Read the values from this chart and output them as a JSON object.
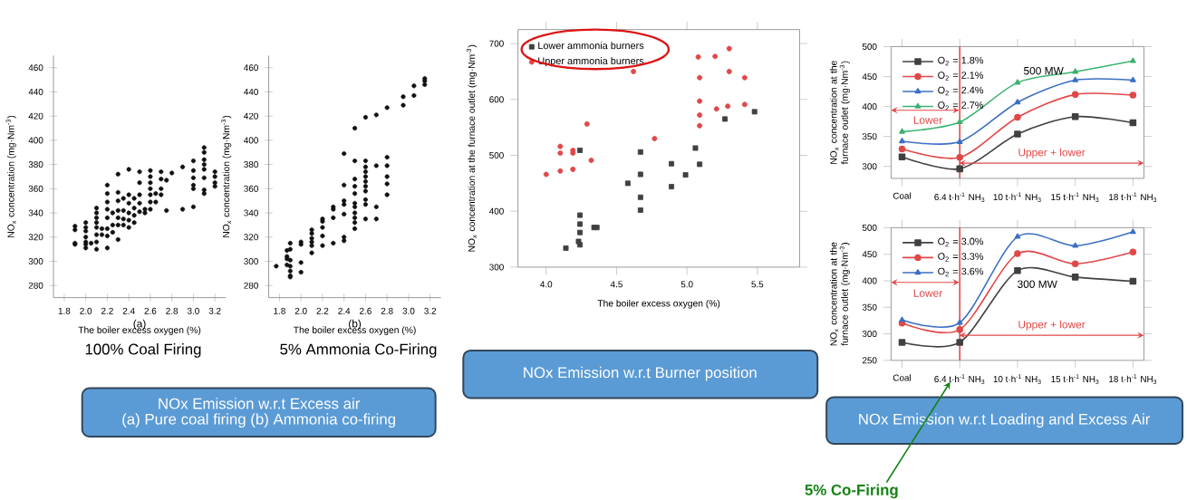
{
  "chart_data": [
    {
      "type": "scatter",
      "xlabel": "The boiler excess oxygen (%)",
      "ylabel": "NO$_{x}$ concentration (mg·Nm$^{-3}$)",
      "color": "#111111",
      "marker": "circle",
      "x": [
        1.9,
        1.9,
        1.9,
        1.9,
        2.0,
        2.0,
        2.0,
        2.0,
        2.0,
        2.0,
        2.0,
        2.05,
        2.1,
        2.1,
        2.1,
        2.1,
        2.1,
        2.1,
        2.1,
        2.1,
        2.15,
        2.15,
        2.2,
        2.2,
        2.2,
        2.2,
        2.2,
        2.2,
        2.2,
        2.2,
        2.25,
        2.25,
        2.25,
        2.3,
        2.3,
        2.3,
        2.3,
        2.3,
        2.3,
        2.3,
        2.35,
        2.35,
        2.35,
        2.35,
        2.4,
        2.4,
        2.4,
        2.4,
        2.4,
        2.4,
        2.45,
        2.45,
        2.45,
        2.45,
        2.5,
        2.5,
        2.5,
        2.5,
        2.5,
        2.55,
        2.55,
        2.6,
        2.6,
        2.6,
        2.6,
        2.6,
        2.6,
        2.6,
        2.65,
        2.65,
        2.7,
        2.7,
        2.7,
        2.7,
        2.75,
        2.75,
        2.8,
        2.9,
        2.9,
        3.0,
        3.0,
        3.0,
        3.0,
        3.0,
        3.0,
        3.1,
        3.1,
        3.1,
        3.1,
        3.1,
        3.1,
        3.1,
        3.1,
        3.2,
        3.2,
        3.2,
        3.2
      ],
      "values": [
        329,
        326,
        315,
        314,
        332,
        328,
        325,
        320,
        316,
        314,
        311,
        315,
        344,
        340,
        336,
        332,
        328,
        322,
        316,
        310,
        327,
        322,
        363,
        356,
        349,
        343,
        336,
        327,
        321,
        311,
        340,
        330,
        324,
        372,
        357,
        350,
        342,
        336,
        330,
        318,
        352,
        342,
        335,
        330,
        376,
        355,
        348,
        340,
        334,
        328,
        352,
        344,
        338,
        332,
        374,
        365,
        355,
        348,
        341,
        343,
        340,
        375,
        370,
        365,
        360,
        355,
        349,
        343,
        356,
        349,
        374,
        368,
        360,
        355,
        367,
        342,
        373,
        378,
        343,
        383,
        375,
        369,
        363,
        360,
        345,
        394,
        390,
        384,
        380,
        376,
        369,
        359,
        356,
        374,
        370,
        365,
        362
      ],
      "xlim": [
        1.7,
        3.3
      ],
      "xticks": [
        1.8,
        {
          "value": 2.0,
          "label": "2.0"
        },
        2.2,
        2.4,
        2.6,
        2.8,
        {
          "value": 3.0,
          "label": "3.0"
        },
        3.2
      ],
      "ylim": [
        270,
        470
      ],
      "yticks": [
        280,
        300,
        320,
        340,
        360,
        380,
        400,
        420,
        440,
        460
      ],
      "annotations": [
        "(a)",
        "100% Coal Firing"
      ]
    },
    {
      "type": "scatter",
      "xlabel": "The boiler excess oxygen (%)",
      "ylabel": "NO$_{x}$ concentration (mg·Nm$^{-3}$)",
      "color": "#111111",
      "marker": "circle",
      "x": [
        1.77,
        1.87,
        1.87,
        1.87,
        1.87,
        1.9,
        1.9,
        1.9,
        1.9,
        1.9,
        1.9,
        1.9,
        2.0,
        2.0,
        2.0,
        2.0,
        2.1,
        2.1,
        2.1,
        2.1,
        2.1,
        2.1,
        2.2,
        2.2,
        2.2,
        2.2,
        2.2,
        2.3,
        2.3,
        2.3,
        2.3,
        2.4,
        2.4,
        2.4,
        2.4,
        2.4,
        2.4,
        2.4,
        2.5,
        2.5,
        2.5,
        2.5,
        2.5,
        2.5,
        2.5,
        2.5,
        2.5,
        2.5,
        2.5,
        2.6,
        2.6,
        2.6,
        2.6,
        2.6,
        2.6,
        2.6,
        2.6,
        2.6,
        2.6,
        2.6,
        2.7,
        2.7,
        2.7,
        2.7,
        2.8,
        2.8,
        2.8,
        2.8,
        2.8,
        2.8,
        2.95,
        2.95,
        3.05,
        3.05,
        3.15,
        3.15,
        3.15
      ],
      "values": [
        296,
        309,
        304,
        302,
        297,
        315,
        310,
        301,
        296,
        292,
        288,
        287,
        316,
        314,
        299,
        291,
        326,
        323,
        319,
        316,
        313,
        307,
        335,
        333,
        328,
        321,
        313,
        345,
        343,
        336,
        315,
        389,
        363,
        350,
        347,
        339,
        320,
        317,
        410,
        383,
        368,
        362,
        356,
        348,
        345,
        340,
        336,
        332,
        327,
        419,
        383,
        378,
        374,
        370,
        366,
        362,
        358,
        351,
        347,
        335,
        421,
        379,
        345,
        335,
        427,
        386,
        379,
        370,
        364,
        355,
        436,
        429,
        445,
        437,
        451,
        449,
        446
      ],
      "xlim": [
        1.7,
        3.3
      ],
      "xticks": [
        1.8,
        {
          "value": 2.0,
          "label": "2.0"
        },
        2.2,
        2.4,
        2.6,
        2.8,
        {
          "value": 3.0,
          "label": "3.0"
        },
        3.2
      ],
      "ylim": [
        270,
        470
      ],
      "yticks": [
        280,
        300,
        320,
        340,
        360,
        380,
        400,
        420,
        440,
        460
      ],
      "annotations": [
        "(b)",
        "5% Ammonia Co-Firing",
        "NOx Emission w.r.t Excess air",
        "(a) Pure coal firing (b) Ammonia co-firing"
      ]
    },
    {
      "type": "scatter",
      "xlabel": "The boiler excess oxygen (%)",
      "ylabel": "NO$_{x}$ concentration at the furnace outlet (mg·Nm$^{-3}$)",
      "legend": "top left",
      "series": [
        {
          "name": "Lower ammonia burners",
          "color": "#404040",
          "marker": "square",
          "x": [
            4.14,
            4.23,
            4.24,
            4.24,
            4.24,
            4.24,
            4.24,
            4.34,
            4.36,
            4.58,
            4.67,
            4.67,
            4.67,
            4.67,
            4.89,
            4.89,
            4.99,
            5.06,
            5.09,
            5.27,
            5.48
          ],
          "values": [
            334,
            346,
            340,
            362,
            377,
            393,
            509,
            371,
            371,
            450,
            506,
            466,
            425,
            402,
            485,
            444,
            465,
            513,
            484,
            565,
            578
          ]
        },
        {
          "name": "Upper ammonia burners",
          "color": "#e04848",
          "marker": "circle",
          "x": [
            4.0,
            4.1,
            4.1,
            4.1,
            4.19,
            4.19,
            4.19,
            4.29,
            4.32,
            4.62,
            4.77,
            5.08,
            5.09,
            5.09,
            5.09,
            5.09,
            5.2,
            5.21,
            5.3,
            5.3,
            5.29,
            5.41,
            5.41
          ],
          "values": [
            466,
            516,
            504,
            472,
            509,
            504,
            475,
            556,
            491,
            650,
            530,
            676,
            639,
            597,
            572,
            553,
            677,
            583,
            691,
            650,
            588,
            639,
            591
          ]
        }
      ],
      "xlim": [
        3.8,
        5.8
      ],
      "xticks": [
        {
          "value": 4.0,
          "label": "4.0"
        },
        4.5,
        {
          "value": 5.0,
          "label": "5.0"
        },
        5.5
      ],
      "ylim": [
        300,
        725
      ],
      "yticks": [
        300,
        400,
        500,
        600,
        700
      ],
      "annotations": [
        "NOx Emission w.r.t Burner position"
      ]
    },
    {
      "type": "line",
      "ylabel": "NO$_{x}$ concentration at the furnace outlet (mg·Nm$^{-3}$)",
      "legend": "top left",
      "line_style": "solid",
      "categories": [
        "Coal",
        "6.4 t·h$^{-1}$ NH$_{3}$",
        "10 t·h$^{-1}$ NH$_{3}$",
        "15 t·h$^{-1}$ NH$_{3}$",
        "18 t·h$^{-1}$ NH$_{3}$"
      ],
      "series": [
        {
          "name": "O$_{2}$ = 1.8%",
          "color": "#404040",
          "marker": "square",
          "values": [
            316,
            296,
            354,
            383,
            373
          ]
        },
        {
          "name": "O$_{2}$ = 2.1%",
          "color": "#e04848",
          "marker": "circle",
          "values": [
            329,
            315,
            382,
            420,
            419
          ]
        },
        {
          "name": "O$_{2}$ = 2.4%",
          "color": "#3b6fc4",
          "marker": "triangle",
          "values": [
            342,
            341,
            407,
            444,
            444
          ]
        },
        {
          "name": "O$_{2}$ = 2.7%",
          "color": "#3cb371",
          "marker": "triangle",
          "values": [
            358,
            374,
            440,
            458,
            476
          ]
        }
      ],
      "ylim": [
        280,
        500
      ],
      "yticks": [
        300,
        350,
        400,
        450,
        500
      ],
      "ref_lines": [
        {
          "axis": "x",
          "value": "6.4 t·h$^{-1}$ NH$_{3}$",
          "color": "#e04848"
        }
      ],
      "annotations": [
        "Lower",
        "Upper + lower",
        "500 MW"
      ]
    },
    {
      "type": "line",
      "ylabel": "NO$_{x}$ concentration at the furnace outlet (mg·Nm$^{-3}$)",
      "legend": "top left",
      "line_style": "solid",
      "categories": [
        "Coal",
        "6.4 t·h$^{-1}$ NH$_{3}$",
        "10 t·h$^{-1}$ NH$_{3}$",
        "15 t·h$^{-1}$ NH$_{3}$",
        "18 t·h$^{-1}$ NH$_{3}$"
      ],
      "series": [
        {
          "name": "O$_{2}$ = 3.0%",
          "color": "#404040",
          "marker": "square",
          "values": [
            284,
            284,
            419,
            407,
            399
          ]
        },
        {
          "name": "O$_{2}$ = 3.3%",
          "color": "#e04848",
          "marker": "circle",
          "values": [
            320,
            308,
            451,
            432,
            454
          ]
        },
        {
          "name": "O$_{2}$ = 3.6%",
          "color": "#3b6fc4",
          "marker": "triangle",
          "values": [
            326,
            321,
            483,
            466,
            492
          ]
        }
      ],
      "ylim": [
        250,
        500
      ],
      "yticks": [
        250,
        300,
        350,
        400,
        450,
        500
      ],
      "ref_lines": [
        {
          "axis": "x",
          "value": "6.4 t·h$^{-1}$ NH$_{3}$",
          "color": "#e04848"
        }
      ],
      "annotations": [
        "Lower",
        "Upper + lower",
        "300 MW",
        "NOx Emission w.r.t Loading and Excess Air",
        "5% Co-Firing"
      ]
    }
  ]
}
